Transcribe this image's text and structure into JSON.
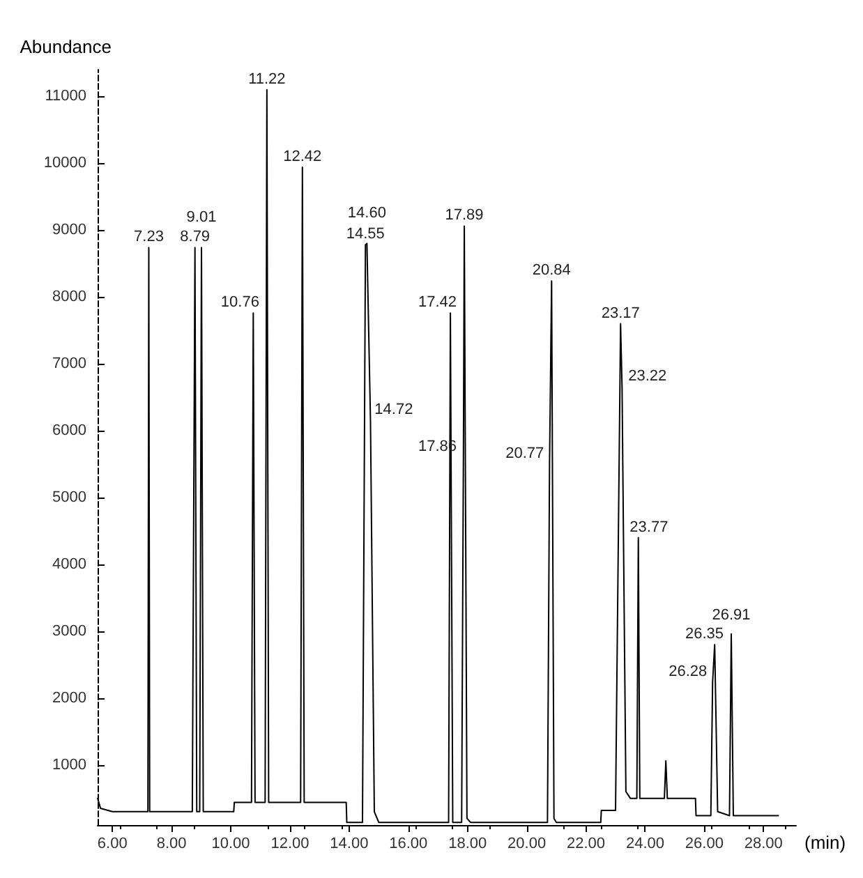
{
  "chart_data": {
    "type": "line",
    "ylabel": "Abundance",
    "xlabel": "(min)",
    "x": [
      5.5,
      5.6,
      6.0,
      7.2,
      7.23,
      7.26,
      8.7,
      8.79,
      8.85,
      8.95,
      9.01,
      9.07,
      10.1,
      10.12,
      10.7,
      10.76,
      10.82,
      11.16,
      11.22,
      11.28,
      12.36,
      12.42,
      12.48,
      13.9,
      13.92,
      14.45,
      14.55,
      14.6,
      14.72,
      14.85,
      15.0,
      17.36,
      17.42,
      17.5,
      17.8,
      17.86,
      17.89,
      17.98,
      18.1,
      20.7,
      20.77,
      20.84,
      20.92,
      21.0,
      22.5,
      22.52,
      23.0,
      23.17,
      23.22,
      23.35,
      23.5,
      23.72,
      23.77,
      23.82,
      24.65,
      24.7,
      24.75,
      25.7,
      25.72,
      26.22,
      26.28,
      26.35,
      26.45,
      26.85,
      26.91,
      26.98,
      28.5
    ],
    "series": [
      {
        "color": "#000000",
        "values": [
          500,
          350,
          300,
          300,
          8740,
          300,
          300,
          8740,
          300,
          300,
          8740,
          300,
          300,
          440,
          440,
          7760,
          440,
          440,
          11100,
          440,
          440,
          9940,
          440,
          440,
          140,
          140,
          8780,
          8800,
          6160,
          300,
          140,
          140,
          7760,
          140,
          140,
          5600,
          9060,
          200,
          140,
          140,
          5500,
          8240,
          200,
          140,
          140,
          320,
          320,
          7600,
          6660,
          600,
          500,
          500,
          4400,
          500,
          500,
          1060,
          500,
          500,
          240,
          240,
          2240,
          2800,
          300,
          240,
          2960,
          240,
          240
        ]
      }
    ],
    "annotations": [
      {
        "text": "7.23",
        "x": 7.23,
        "y": 8740
      },
      {
        "text": "8.79",
        "x": 8.79,
        "y": 8740
      },
      {
        "text": "9.01",
        "x": 9.01,
        "y": 8740
      },
      {
        "text": "10.76",
        "x": 10.76,
        "y": 7760
      },
      {
        "text": "11.22",
        "x": 11.22,
        "y": 11100
      },
      {
        "text": "12.42",
        "x": 12.42,
        "y": 9940
      },
      {
        "text": "14.55",
        "x": 14.55,
        "y": 8780
      },
      {
        "text": "14.60",
        "x": 14.6,
        "y": 8800
      },
      {
        "text": "14.72",
        "x": 14.72,
        "y": 6160
      },
      {
        "text": "17.42",
        "x": 17.42,
        "y": 7760
      },
      {
        "text": "17.89",
        "x": 17.89,
        "y": 9060
      },
      {
        "text": "17.86",
        "x": 17.86,
        "y": 5600
      },
      {
        "text": "20.84",
        "x": 20.84,
        "y": 8240
      },
      {
        "text": "20.77",
        "x": 20.77,
        "y": 5500
      },
      {
        "text": "23.17",
        "x": 23.17,
        "y": 7600
      },
      {
        "text": "23.22",
        "x": 23.22,
        "y": 6660
      },
      {
        "text": "23.77",
        "x": 23.77,
        "y": 4400
      },
      {
        "text": "26.35",
        "x": 26.35,
        "y": 2800
      },
      {
        "text": "26.28",
        "x": 26.28,
        "y": 2240
      },
      {
        "text": "26.91",
        "x": 26.91,
        "y": 2960
      }
    ],
    "xlim": [
      5.5,
      29.1
    ],
    "ylim": [
      100,
      11400
    ],
    "xticks": [
      {
        "value": 6,
        "label": "6.00"
      },
      {
        "value": 8,
        "label": "8.00"
      },
      {
        "value": 10,
        "label": "10.00"
      },
      {
        "value": 12,
        "label": "12.00"
      },
      {
        "value": 14,
        "label": "14.00"
      },
      {
        "value": 16,
        "label": "16.00"
      },
      {
        "value": 18,
        "label": "18.00"
      },
      {
        "value": 20,
        "label": "20.00"
      },
      {
        "value": 22,
        "label": "22.00"
      },
      {
        "value": 24,
        "label": "24.00"
      },
      {
        "value": 26,
        "label": "26.00"
      },
      {
        "value": 28,
        "label": "28.00"
      }
    ],
    "yticks": [
      1000,
      2000,
      3000,
      4000,
      5000,
      6000,
      7000,
      8000,
      9000,
      10000,
      11000
    ],
    "grid": false,
    "marker": "none",
    "line_style": "solid"
  }
}
